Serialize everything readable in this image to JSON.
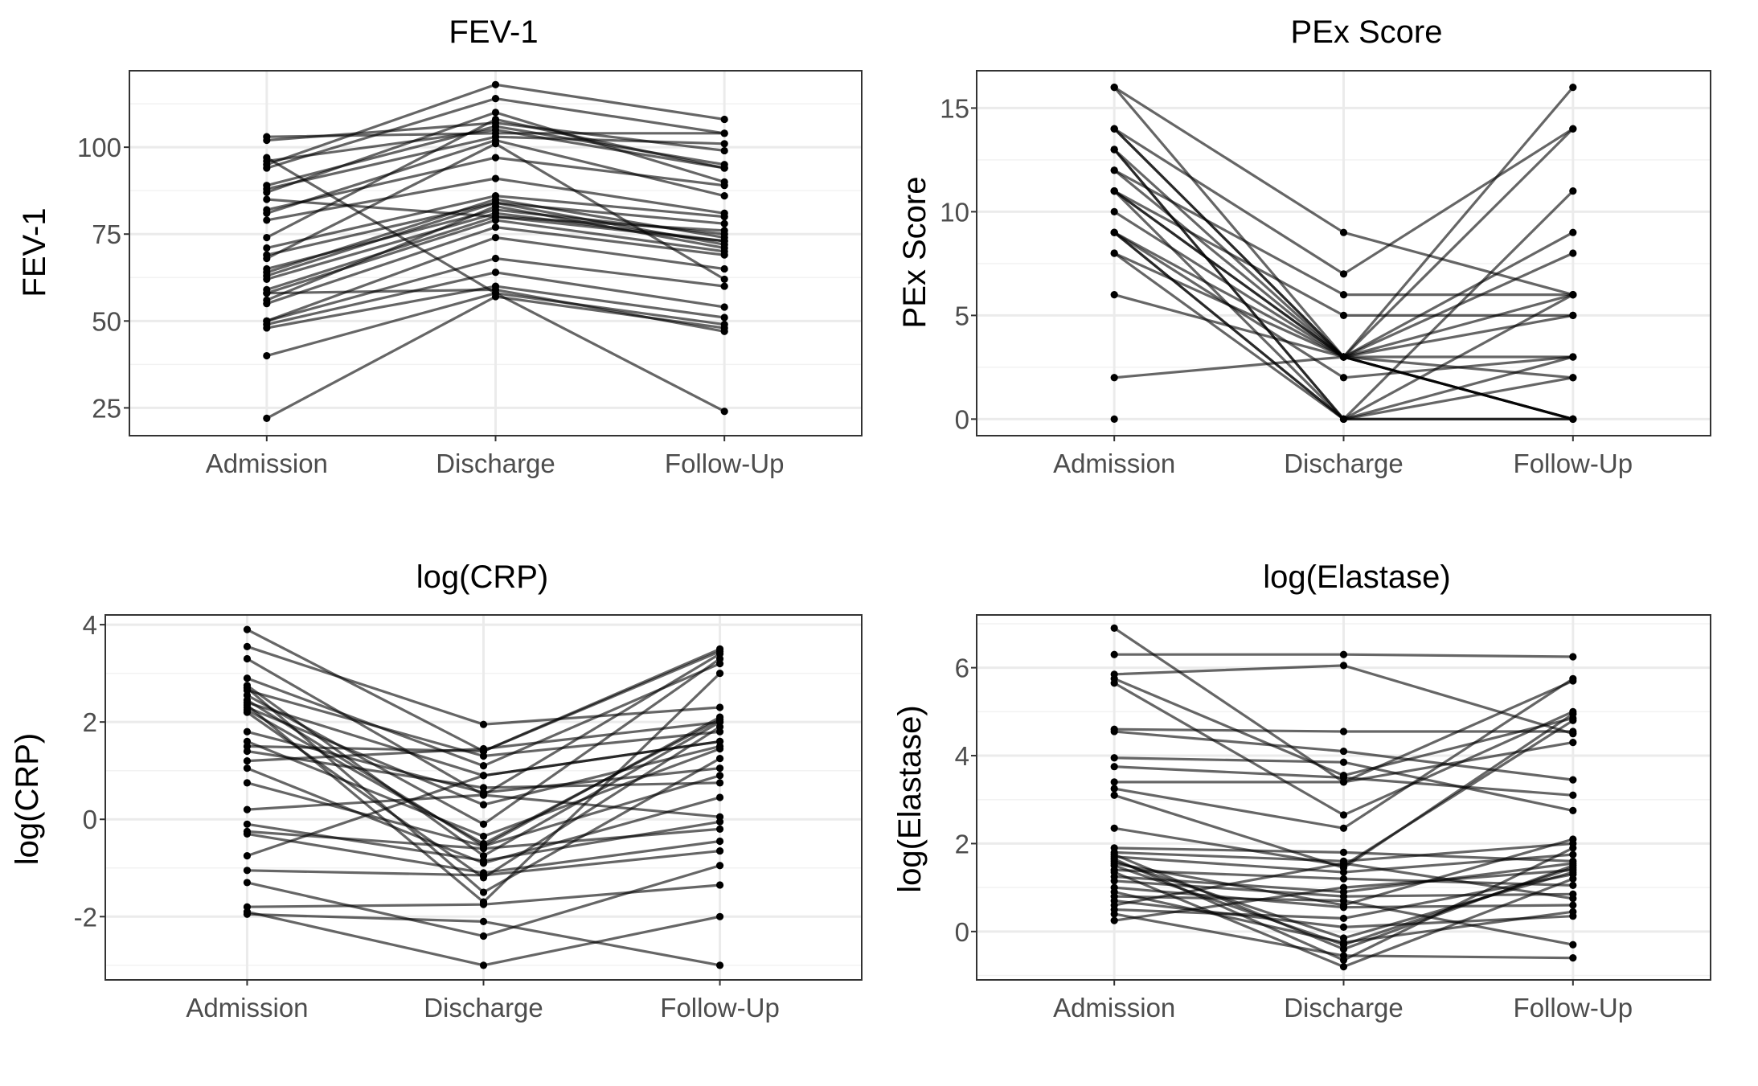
{
  "chart_data": [
    {
      "type": "line",
      "title": "FEV-1",
      "ylabel": "FEV-1",
      "xlabel": "",
      "categories": [
        "Admission",
        "Discharge",
        "Follow-Up"
      ],
      "ylim": [
        17,
        122
      ],
      "yticks": [
        "25",
        "50",
        "75",
        "100"
      ],
      "ytick_values": [
        25,
        50,
        75,
        100
      ],
      "grid": true,
      "series": [
        {
          "values": [
            103,
            104,
            104
          ]
        },
        {
          "values": [
            102,
            107,
            99
          ]
        },
        {
          "values": [
            96,
            105,
            94
          ]
        },
        {
          "values": [
            95,
            118,
            108
          ]
        },
        {
          "values": [
            94,
            114,
            104
          ]
        },
        {
          "values": [
            89,
            106,
            95
          ]
        },
        {
          "values": [
            88,
            103,
            101
          ]
        },
        {
          "values": [
            87,
            110,
            90
          ]
        },
        {
          "values": [
            82,
            97,
            89
          ]
        },
        {
          "values": [
            81,
            102,
            86
          ]
        },
        {
          "values": [
            79,
            91,
            81
          ]
        },
        {
          "values": [
            74,
            108,
            94
          ]
        },
        {
          "values": [
            71,
            86,
            80
          ]
        },
        {
          "values": [
            69,
            84,
            78
          ]
        },
        {
          "values": [
            65,
            82,
            75
          ]
        },
        {
          "values": [
            64,
            85,
            74
          ]
        },
        {
          "values": [
            63,
            84,
            72
          ]
        },
        {
          "values": [
            62,
            81,
            73
          ]
        },
        {
          "values": [
            59,
            80,
            73
          ]
        },
        {
          "values": [
            58,
            79,
            70
          ]
        },
        {
          "values": [
            56,
            83,
            71
          ]
        },
        {
          "values": [
            55,
            77,
            69
          ]
        },
        {
          "values": [
            50,
            74,
            65
          ]
        },
        {
          "values": [
            50,
            68,
            60
          ]
        },
        {
          "values": [
            49,
            64,
            54
          ]
        },
        {
          "values": [
            48,
            60,
            51
          ]
        },
        {
          "values": [
            58,
            59,
            47
          ]
        },
        {
          "values": [
            40,
            58,
            49
          ]
        },
        {
          "values": [
            22,
            57,
            48
          ]
        },
        {
          "values": [
            97,
            58,
            24
          ]
        },
        {
          "values": [
            68,
            101,
            62
          ]
        },
        {
          "values": [
            85,
            80,
            76
          ]
        }
      ]
    },
    {
      "type": "line",
      "title": "PEx Score",
      "ylabel": "PEx Score",
      "xlabel": "",
      "categories": [
        "Admission",
        "Discharge",
        "Follow-Up"
      ],
      "ylim": [
        -0.8,
        16.8
      ],
      "yticks": [
        "0",
        "5",
        "10",
        "15"
      ],
      "ytick_values": [
        0,
        5,
        10,
        15
      ],
      "grid": true,
      "series": [
        {
          "values": [
            16,
            3,
            16
          ]
        },
        {
          "values": [
            16,
            9,
            6
          ]
        },
        {
          "values": [
            14,
            3,
            14
          ]
        },
        {
          "values": [
            14,
            7,
            14
          ]
        },
        {
          "values": [
            13,
            0,
            11
          ]
        },
        {
          "values": [
            13,
            3,
            9
          ]
        },
        {
          "values": [
            12,
            3,
            8
          ]
        },
        {
          "values": [
            12,
            6,
            6
          ]
        },
        {
          "values": [
            11,
            3,
            6
          ]
        },
        {
          "values": [
            11,
            0,
            3
          ]
        },
        {
          "values": [
            11,
            5,
            5
          ]
        },
        {
          "values": [
            10,
            3,
            3
          ]
        },
        {
          "values": [
            9,
            0,
            6
          ]
        },
        {
          "values": [
            9,
            3,
            0
          ]
        },
        {
          "values": [
            9,
            2,
            3
          ]
        },
        {
          "values": [
            8,
            3,
            0
          ]
        },
        {
          "values": [
            8,
            0,
            2
          ]
        },
        {
          "values": [
            6,
            3,
            5
          ]
        },
        {
          "values": [
            2,
            3,
            0
          ]
        },
        {
          "values": [
            14,
            3,
            2
          ]
        },
        {
          "values": [
            13,
            0,
            0
          ]
        },
        {
          "values": [
            11,
            3,
            0
          ]
        },
        {
          "values": [
            9,
            0,
            0
          ]
        }
      ],
      "isolated_points": [
        {
          "category": "Admission",
          "value": 0
        }
      ]
    },
    {
      "type": "line",
      "title": "log(CRP)",
      "ylabel": "log(CRP)",
      "xlabel": "",
      "categories": [
        "Admission",
        "Discharge",
        "Follow-Up"
      ],
      "ylim": [
        -3.3,
        4.2
      ],
      "yticks": [
        "-2",
        "0",
        "2",
        "4"
      ],
      "ytick_values": [
        -2,
        0,
        2,
        4
      ],
      "grid": true,
      "series": [
        {
          "values": [
            3.9,
            1.4,
            3.5
          ]
        },
        {
          "values": [
            3.55,
            1.95,
            2.3
          ]
        },
        {
          "values": [
            3.3,
            0.5,
            3.4
          ]
        },
        {
          "values": [
            2.9,
            1.1,
            3.2
          ]
        },
        {
          "values": [
            2.75,
            -0.75,
            2.0
          ]
        },
        {
          "values": [
            2.65,
            1.3,
            1.8
          ]
        },
        {
          "values": [
            2.55,
            -0.1,
            3.3
          ]
        },
        {
          "values": [
            2.45,
            -0.55,
            2.1
          ]
        },
        {
          "values": [
            2.4,
            0.9,
            1.6
          ]
        },
        {
          "values": [
            2.35,
            -1.7,
            3.0
          ]
        },
        {
          "values": [
            2.3,
            0.3,
            1.5
          ]
        },
        {
          "values": [
            2.25,
            -0.5,
            2.05
          ]
        },
        {
          "values": [
            2.2,
            -1.2,
            1.9
          ]
        },
        {
          "values": [
            1.8,
            0.55,
            1.05
          ]
        },
        {
          "values": [
            1.6,
            -0.35,
            1.45
          ]
        },
        {
          "values": [
            1.4,
            0.65,
            0.75
          ]
        },
        {
          "values": [
            1.2,
            1.45,
            2.0
          ]
        },
        {
          "values": [
            1.05,
            -0.9,
            0.45
          ]
        },
        {
          "values": [
            0.75,
            -0.55,
            0.9
          ]
        },
        {
          "values": [
            0.2,
            0.5,
            0.05
          ]
        },
        {
          "values": [
            -0.1,
            -0.85,
            -0.05
          ]
        },
        {
          "values": [
            -0.25,
            -0.6,
            -0.2
          ]
        },
        {
          "values": [
            -0.3,
            -1.1,
            -0.45
          ]
        },
        {
          "values": [
            -0.75,
            0.9,
            1.6
          ]
        },
        {
          "values": [
            -1.05,
            -1.15,
            -0.65
          ]
        },
        {
          "values": [
            -1.3,
            -2.4,
            -0.95
          ]
        },
        {
          "values": [
            -1.8,
            -1.75,
            -1.35
          ]
        },
        {
          "values": [
            -1.9,
            -3.0,
            -2.0
          ]
        },
        {
          "values": [
            -1.95,
            -2.1,
            -3.0
          ]
        },
        {
          "values": [
            2.7,
            -1.5,
            1.25
          ]
        },
        {
          "values": [
            1.5,
            1.4,
            3.45
          ]
        }
      ]
    },
    {
      "type": "line",
      "title": "log(Elastase)",
      "ylabel": "log(Elastase)",
      "xlabel": "",
      "categories": [
        "Admission",
        "Discharge",
        "Follow-Up"
      ],
      "ylim": [
        -1.1,
        7.2
      ],
      "yticks": [
        "0",
        "2",
        "4",
        "6"
      ],
      "ytick_values": [
        0,
        2,
        4,
        6
      ],
      "grid": true,
      "series": [
        {
          "values": [
            6.9,
            3.4,
            4.3
          ]
        },
        {
          "values": [
            6.3,
            6.3,
            6.25
          ]
        },
        {
          "values": [
            5.85,
            6.05,
            4.5
          ]
        },
        {
          "values": [
            5.75,
            3.55,
            4.85
          ]
        },
        {
          "values": [
            5.65,
            2.65,
            5.0
          ]
        },
        {
          "values": [
            4.6,
            4.55,
            4.55
          ]
        },
        {
          "values": [
            4.55,
            4.1,
            3.45
          ]
        },
        {
          "values": [
            3.95,
            3.85,
            2.75
          ]
        },
        {
          "values": [
            3.75,
            3.5,
            3.1
          ]
        },
        {
          "values": [
            3.4,
            3.4,
            5.7
          ]
        },
        {
          "values": [
            3.25,
            2.35,
            5.75
          ]
        },
        {
          "values": [
            3.1,
            1.45,
            4.95
          ]
        },
        {
          "values": [
            2.35,
            1.5,
            4.8
          ]
        },
        {
          "values": [
            1.9,
            1.8,
            1.6
          ]
        },
        {
          "values": [
            1.8,
            1.6,
            2.0
          ]
        },
        {
          "values": [
            1.75,
            -0.4,
            1.5
          ]
        },
        {
          "values": [
            1.7,
            1.35,
            1.75
          ]
        },
        {
          "values": [
            1.65,
            -0.65,
            1.9
          ]
        },
        {
          "values": [
            1.6,
            -0.15,
            1.35
          ]
        },
        {
          "values": [
            1.55,
            0.6,
            2.1
          ]
        },
        {
          "values": [
            1.5,
            -0.3,
            1.45
          ]
        },
        {
          "values": [
            1.4,
            1.2,
            1.05
          ]
        },
        {
          "values": [
            1.35,
            -0.8,
            1.2
          ]
        },
        {
          "values": [
            1.25,
            0.9,
            1.55
          ]
        },
        {
          "values": [
            1.15,
            0.8,
            0.85
          ]
        },
        {
          "values": [
            1.0,
            0.55,
            0.6
          ]
        },
        {
          "values": [
            0.9,
            -0.25,
            0.45
          ]
        },
        {
          "values": [
            0.8,
            0.7,
            -0.3
          ]
        },
        {
          "values": [
            0.7,
            0.1,
            0.35
          ]
        },
        {
          "values": [
            0.6,
            1.55,
            0.75
          ]
        },
        {
          "values": [
            0.5,
            0.3,
            1.3
          ]
        },
        {
          "values": [
            0.4,
            -0.55,
            -0.6
          ]
        },
        {
          "values": [
            0.25,
            1.0,
            1.4
          ]
        }
      ]
    }
  ]
}
